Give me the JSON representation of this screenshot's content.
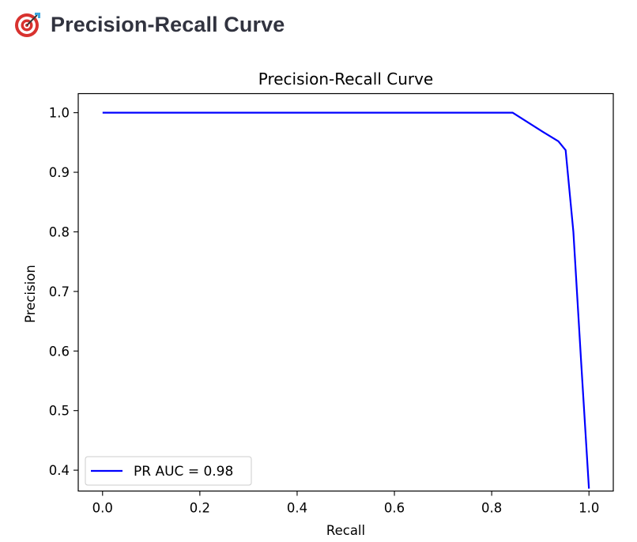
{
  "page": {
    "title": "Precision-Recall Curve",
    "title_icon": "direct-hit-target-icon"
  },
  "chart_data": {
    "type": "line",
    "title": "Precision-Recall Curve",
    "xlabel": "Recall",
    "ylabel": "Precision",
    "xlim": [
      -0.05,
      1.05
    ],
    "ylim": [
      0.365,
      1.032
    ],
    "xticks": [
      0.0,
      0.2,
      0.4,
      0.6,
      0.8,
      1.0
    ],
    "xtick_labels": [
      "0.0",
      "0.2",
      "0.4",
      "0.6",
      "0.8",
      "1.0"
    ],
    "yticks": [
      0.4,
      0.5,
      0.6,
      0.7,
      0.8,
      0.9,
      1.0
    ],
    "ytick_labels": [
      "0.4",
      "0.5",
      "0.6",
      "0.7",
      "0.8",
      "0.9",
      "1.0"
    ],
    "grid": false,
    "legend": {
      "placement": "lower-left"
    },
    "series": [
      {
        "name": "PR AUC = 0.98",
        "color": "#0000ff",
        "x": [
          0.0,
          0.843,
          0.905,
          0.937,
          0.952,
          0.968,
          0.984,
          1.0
        ],
        "y": [
          1.0,
          1.0,
          0.968,
          0.952,
          0.937,
          0.8,
          0.58,
          0.369
        ]
      }
    ]
  }
}
